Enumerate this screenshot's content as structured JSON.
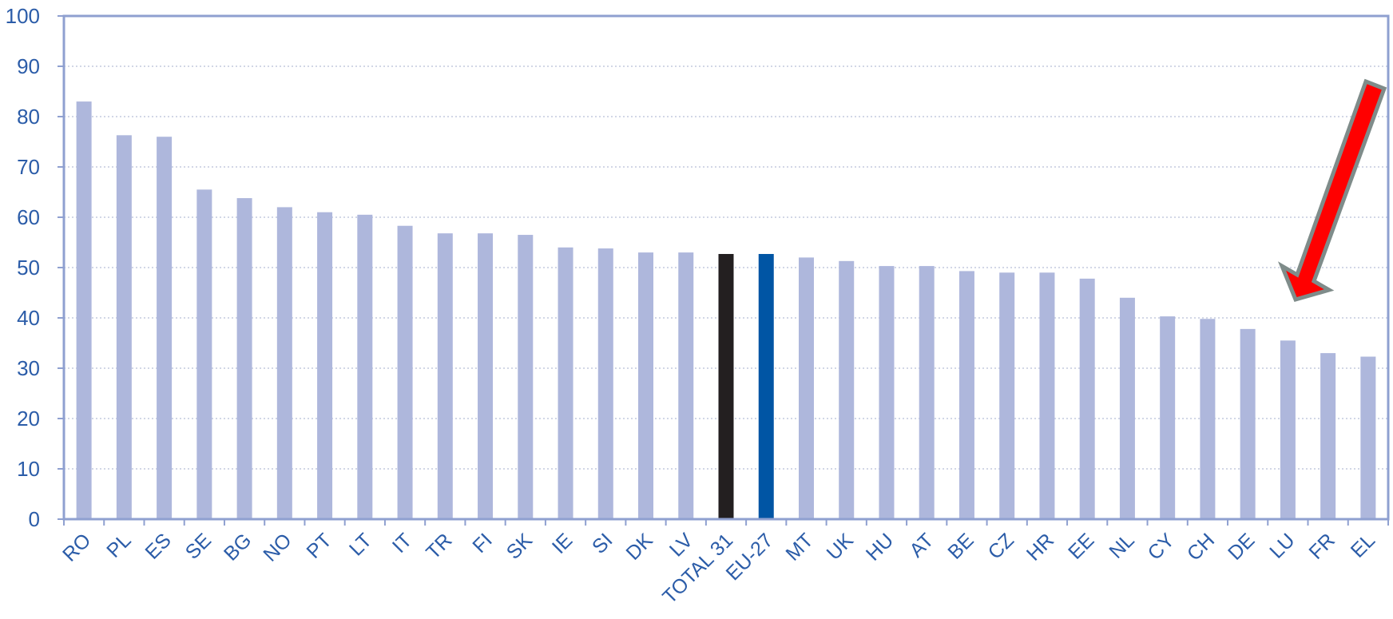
{
  "chart_data": {
    "type": "bar",
    "title": "",
    "xlabel": "",
    "ylabel": "",
    "ylim": [
      0,
      100
    ],
    "yticks": [
      "0",
      "10",
      "20",
      "30",
      "40",
      "50",
      "60",
      "70",
      "80",
      "90",
      "100"
    ],
    "grid": "horizontal dotted",
    "categories": [
      "RO",
      "PL",
      "ES",
      "SE",
      "BG",
      "NO",
      "PT",
      "LT",
      "IT",
      "TR",
      "FI",
      "SK",
      "IE",
      "SI",
      "DK",
      "LV",
      "TOTAL 31",
      "EU-27",
      "MT",
      "UK",
      "HU",
      "AT",
      "BE",
      "CZ",
      "HR",
      "EE",
      "NL",
      "CY",
      "CH",
      "DE",
      "LU",
      "FR",
      "EL"
    ],
    "values": [
      83,
      76.3,
      76,
      65.5,
      63.8,
      62,
      61,
      60.5,
      58.3,
      56.8,
      56.8,
      56.5,
      54,
      53.8,
      53,
      53,
      52.7,
      52.7,
      52,
      51.3,
      50.3,
      50.3,
      49.3,
      49,
      49,
      47.8,
      44,
      40.3,
      39.8,
      37.8,
      35.5,
      33,
      32.3
    ],
    "colors": {
      "default_bar": "#aeb7dc",
      "total_bar": "#231f20",
      "eu_bar": "#0055a4",
      "axis": "#8fa0d0",
      "grid": "#b8bfd8",
      "labels": "#2b5ca8",
      "arrow_fill": "#ff0000",
      "arrow_stroke": "#7f8c8a"
    },
    "highlight": {
      "TOTAL 31": "total_bar",
      "EU-27": "eu_bar"
    },
    "annotations": [
      {
        "type": "arrow",
        "color": "red",
        "points_to": "LU"
      }
    ]
  }
}
